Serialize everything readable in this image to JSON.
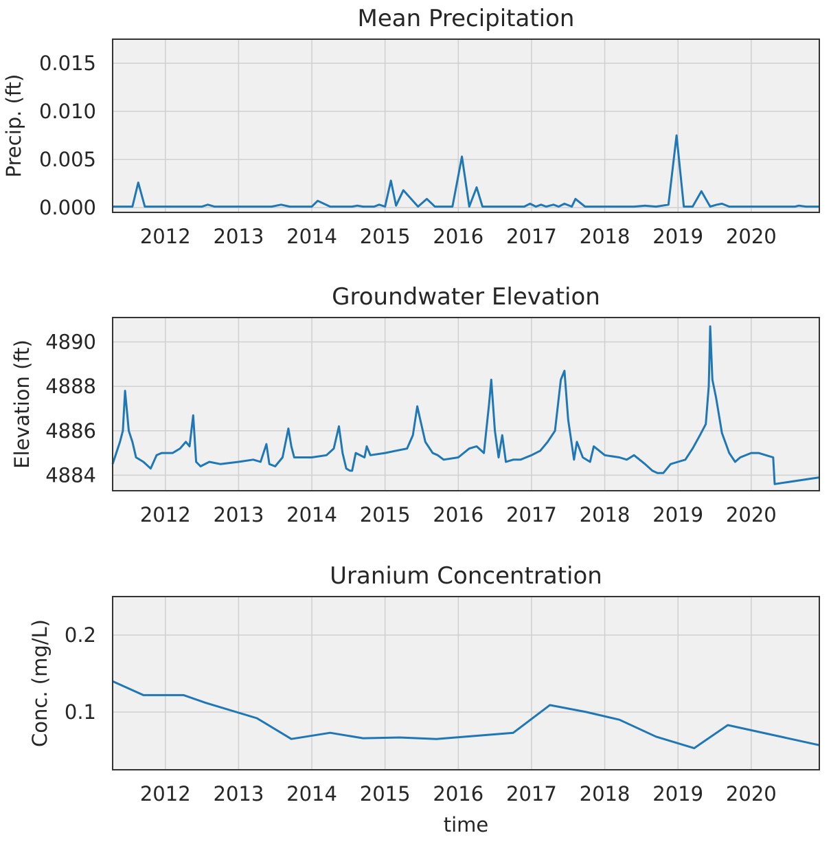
{
  "chart_data": [
    {
      "type": "line",
      "title": "Mean Precipitation",
      "xlabel": "",
      "ylabel": "Precip. (ft)",
      "xlim": [
        2011.28,
        2020.93
      ],
      "ylim": [
        -0.0005,
        0.0175
      ],
      "x_ticks": [
        2012,
        2013,
        2014,
        2015,
        2016,
        2017,
        2018,
        2019,
        2020
      ],
      "x_tick_labels": [
        "2012",
        "2013",
        "2014",
        "2015",
        "2016",
        "2017",
        "2018",
        "2019",
        "2020"
      ],
      "y_ticks": [
        0.0,
        0.005,
        0.01,
        0.015
      ],
      "y_tick_labels": [
        "0.000",
        "0.005",
        "0.010",
        "0.015"
      ],
      "grid": true,
      "series": [
        {
          "color": "#1f77b4",
          "x": [
            2011.28,
            2011.55,
            2011.63,
            2011.72,
            2011.8,
            2012.5,
            2012.58,
            2012.67,
            2013.45,
            2013.58,
            2013.7,
            2014.0,
            2014.08,
            2014.25,
            2014.55,
            2014.62,
            2014.7,
            2014.85,
            2014.92,
            2015.0,
            2015.08,
            2015.15,
            2015.25,
            2015.45,
            2015.57,
            2015.68,
            2015.92,
            2016.05,
            2016.15,
            2016.25,
            2016.33,
            2016.45,
            2016.9,
            2016.98,
            2017.06,
            2017.13,
            2017.2,
            2017.3,
            2017.37,
            2017.45,
            2017.55,
            2017.6,
            2017.73,
            2018.4,
            2018.55,
            2018.7,
            2018.87,
            2018.98,
            2019.08,
            2019.2,
            2019.32,
            2019.44,
            2019.53,
            2019.6,
            2019.7,
            2020.6,
            2020.65,
            2020.75,
            2020.93
          ],
          "y": [
            0.0001,
            0.0001,
            0.0026,
            0.0001,
            0.0001,
            0.0001,
            0.0003,
            0.0001,
            0.0001,
            0.0003,
            0.0001,
            0.0001,
            0.0007,
            0.0001,
            0.0001,
            0.0002,
            0.0001,
            0.0001,
            0.0003,
            0.0001,
            0.0028,
            0.0002,
            0.0018,
            0.0001,
            0.0009,
            0.0001,
            0.0001,
            0.0053,
            0.0001,
            0.0021,
            0.0001,
            0.0001,
            0.0001,
            0.0004,
            0.0001,
            0.0003,
            0.0001,
            0.0003,
            0.0001,
            0.0004,
            0.0001,
            0.0009,
            0.0001,
            0.0001,
            0.0002,
            0.0001,
            0.0003,
            0.0075,
            0.0001,
            0.0001,
            0.0017,
            0.0001,
            0.0003,
            0.0004,
            0.0001,
            0.0001,
            0.0002,
            0.0001,
            0.0001
          ]
        }
      ]
    },
    {
      "type": "line",
      "title": "Groundwater Elevation",
      "xlabel": "",
      "ylabel": "Elevation (ft)",
      "xlim": [
        2011.28,
        2020.93
      ],
      "ylim": [
        4883.3,
        4891.1
      ],
      "x_ticks": [
        2012,
        2013,
        2014,
        2015,
        2016,
        2017,
        2018,
        2019,
        2020
      ],
      "x_tick_labels": [
        "2012",
        "2013",
        "2014",
        "2015",
        "2016",
        "2017",
        "2018",
        "2019",
        "2020"
      ],
      "y_ticks": [
        4884,
        4886,
        4888,
        4890
      ],
      "y_tick_labels": [
        "4884",
        "4886",
        "4888",
        "4890"
      ],
      "grid": true,
      "series": [
        {
          "color": "#1f77b4",
          "x": [
            2011.28,
            2011.33,
            2011.38,
            2011.42,
            2011.45,
            2011.5,
            2011.55,
            2011.6,
            2011.7,
            2011.8,
            2011.88,
            2011.95,
            2012.1,
            2012.2,
            2012.28,
            2012.33,
            2012.38,
            2012.42,
            2012.48,
            2012.6,
            2012.75,
            2013.0,
            2013.2,
            2013.3,
            2013.38,
            2013.42,
            2013.5,
            2013.6,
            2013.68,
            2013.72,
            2013.76,
            2013.85,
            2014.0,
            2014.2,
            2014.3,
            2014.37,
            2014.42,
            2014.47,
            2014.52,
            2014.55,
            2014.6,
            2014.72,
            2014.75,
            2014.8,
            2015.0,
            2015.15,
            2015.3,
            2015.38,
            2015.44,
            2015.48,
            2015.55,
            2015.65,
            2015.72,
            2015.8,
            2016.0,
            2016.15,
            2016.25,
            2016.35,
            2016.42,
            2016.45,
            2016.5,
            2016.55,
            2016.6,
            2016.65,
            2016.75,
            2016.85,
            2017.0,
            2017.12,
            2017.22,
            2017.32,
            2017.4,
            2017.45,
            2017.5,
            2017.58,
            2017.62,
            2017.7,
            2017.8,
            2017.85,
            2018.0,
            2018.2,
            2018.3,
            2018.4,
            2018.55,
            2018.65,
            2018.72,
            2018.8,
            2018.9,
            2019.0,
            2019.1,
            2019.2,
            2019.3,
            2019.38,
            2019.42,
            2019.44,
            2019.47,
            2019.52,
            2019.6,
            2019.7,
            2019.78,
            2019.85,
            2020.0,
            2020.1,
            2020.2,
            2020.3,
            2020.32,
            2020.93
          ],
          "y": [
            4884.5,
            4885.0,
            4885.5,
            4886.0,
            4887.8,
            4886.0,
            4885.5,
            4884.8,
            4884.6,
            4884.3,
            4884.9,
            4885.0,
            4885.0,
            4885.2,
            4885.5,
            4885.3,
            4886.7,
            4884.6,
            4884.4,
            4884.6,
            4884.5,
            4884.6,
            4884.7,
            4884.6,
            4885.4,
            4884.5,
            4884.4,
            4884.8,
            4886.1,
            4885.3,
            4884.8,
            4884.8,
            4884.8,
            4884.9,
            4885.2,
            4886.2,
            4885.0,
            4884.3,
            4884.2,
            4884.2,
            4885.0,
            4884.8,
            4885.3,
            4884.9,
            4885.0,
            4885.1,
            4885.2,
            4885.8,
            4887.1,
            4886.5,
            4885.5,
            4885.0,
            4884.9,
            4884.7,
            4884.8,
            4885.2,
            4885.3,
            4885.0,
            4887.2,
            4888.3,
            4886.0,
            4884.8,
            4885.8,
            4884.6,
            4884.7,
            4884.7,
            4884.9,
            4885.1,
            4885.5,
            4886.0,
            4888.3,
            4888.7,
            4886.5,
            4884.7,
            4885.5,
            4884.8,
            4884.6,
            4885.3,
            4884.9,
            4884.8,
            4884.7,
            4884.9,
            4884.5,
            4884.2,
            4884.1,
            4884.1,
            4884.5,
            4884.6,
            4884.7,
            4885.2,
            4885.8,
            4886.3,
            4888.0,
            4890.7,
            4888.3,
            4887.5,
            4885.9,
            4885.0,
            4884.6,
            4884.8,
            4885.0,
            4885.0,
            4884.9,
            4884.8,
            4883.6,
            4883.9
          ]
        }
      ]
    },
    {
      "type": "line",
      "title": "Uranium Concentration",
      "xlabel": "time",
      "ylabel": "Conc. (mg/L)",
      "xlim": [
        2011.28,
        2020.93
      ],
      "ylim": [
        0.025,
        0.25
      ],
      "x_ticks": [
        2012,
        2013,
        2014,
        2015,
        2016,
        2017,
        2018,
        2019,
        2020
      ],
      "x_tick_labels": [
        "2012",
        "2013",
        "2014",
        "2015",
        "2016",
        "2017",
        "2018",
        "2019",
        "2020"
      ],
      "y_ticks": [
        0.1,
        0.2
      ],
      "y_tick_labels": [
        "0.1",
        "0.2"
      ],
      "grid": true,
      "series": [
        {
          "color": "#1f77b4",
          "x": [
            2011.28,
            2011.7,
            2012.25,
            2012.55,
            2013.25,
            2013.72,
            2014.25,
            2014.7,
            2015.2,
            2015.7,
            2016.75,
            2017.25,
            2017.75,
            2018.2,
            2018.7,
            2019.22,
            2019.68,
            2020.93
          ],
          "y": [
            0.14,
            0.122,
            0.122,
            0.112,
            0.092,
            0.065,
            0.073,
            0.066,
            0.067,
            0.065,
            0.073,
            0.109,
            0.1,
            0.09,
            0.068,
            0.053,
            0.083,
            0.057
          ]
        }
      ]
    }
  ]
}
